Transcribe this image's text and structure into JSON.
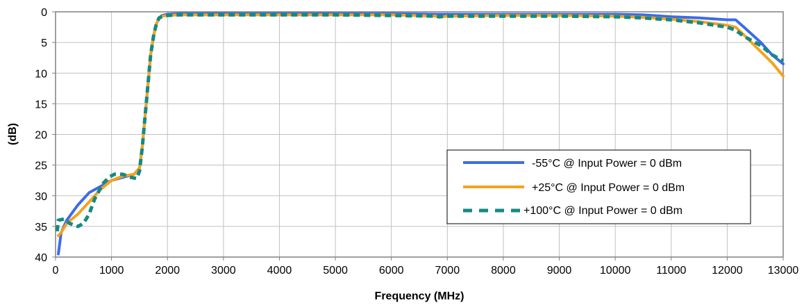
{
  "chart_data": {
    "type": "line",
    "title": "",
    "xlabel": "Frequency (MHz)",
    "ylabel": "(dB)",
    "xlim": [
      0,
      13000
    ],
    "ylim": [
      0,
      40
    ],
    "y_inverted": true,
    "x_ticks": [
      0,
      1000,
      2000,
      3000,
      4000,
      5000,
      6000,
      7000,
      8000,
      9000,
      10000,
      11000,
      12000,
      13000
    ],
    "y_ticks": [
      0,
      5,
      10,
      15,
      20,
      25,
      30,
      35,
      40
    ],
    "grid": true,
    "legend_position": "right",
    "series": [
      {
        "name": "-55°C @  Input Power = 0 dBm",
        "color": "#3D6BE8",
        "dash": "solid",
        "points": [
          [
            50,
            39.5
          ],
          [
            100,
            36
          ],
          [
            200,
            34
          ],
          [
            400,
            31.5
          ],
          [
            600,
            29.5
          ],
          [
            800,
            28.5
          ],
          [
            1000,
            27.5
          ],
          [
            1200,
            27
          ],
          [
            1400,
            26.5
          ],
          [
            1500,
            25.5
          ],
          [
            1550,
            22
          ],
          [
            1600,
            17
          ],
          [
            1650,
            12
          ],
          [
            1700,
            7
          ],
          [
            1750,
            4
          ],
          [
            1800,
            2
          ],
          [
            1850,
            1
          ],
          [
            1900,
            0.6
          ],
          [
            2000,
            0.4
          ],
          [
            2200,
            0.3
          ],
          [
            3000,
            0.3
          ],
          [
            4000,
            0.3
          ],
          [
            5000,
            0.3
          ],
          [
            6000,
            0.3
          ],
          [
            6800,
            0.4
          ],
          [
            7000,
            0.4
          ],
          [
            8000,
            0.4
          ],
          [
            9000,
            0.4
          ],
          [
            10000,
            0.4
          ],
          [
            10500,
            0.5
          ],
          [
            11000,
            0.8
          ],
          [
            11500,
            1.0
          ],
          [
            12000,
            1.3
          ],
          [
            12150,
            1.3
          ],
          [
            12300,
            2.5
          ],
          [
            12600,
            5
          ],
          [
            12800,
            7
          ],
          [
            13000,
            8.5
          ]
        ]
      },
      {
        "name": "+25°C @  Input Power = 0 dBm",
        "color": "#F5A21D",
        "dash": "solid",
        "points": [
          [
            50,
            36.5
          ],
          [
            100,
            36
          ],
          [
            200,
            34.5
          ],
          [
            400,
            33
          ],
          [
            600,
            31
          ],
          [
            800,
            29
          ],
          [
            1000,
            27.5
          ],
          [
            1200,
            26.8
          ],
          [
            1400,
            26.5
          ],
          [
            1500,
            25.5
          ],
          [
            1550,
            22
          ],
          [
            1600,
            17
          ],
          [
            1650,
            12
          ],
          [
            1700,
            7
          ],
          [
            1750,
            4
          ],
          [
            1800,
            2
          ],
          [
            1850,
            1
          ],
          [
            1900,
            0.7
          ],
          [
            2000,
            0.6
          ],
          [
            2200,
            0.5
          ],
          [
            3000,
            0.5
          ],
          [
            4000,
            0.5
          ],
          [
            5000,
            0.5
          ],
          [
            6000,
            0.5
          ],
          [
            6800,
            0.7
          ],
          [
            6850,
            0.9
          ],
          [
            7000,
            0.7
          ],
          [
            8000,
            0.6
          ],
          [
            9000,
            0.6
          ],
          [
            10000,
            0.7
          ],
          [
            10500,
            0.9
          ],
          [
            11000,
            1.2
          ],
          [
            11500,
            1.6
          ],
          [
            12000,
            2.2
          ],
          [
            12150,
            2.5
          ],
          [
            12300,
            3.8
          ],
          [
            12600,
            6.5
          ],
          [
            12800,
            8.3
          ],
          [
            13000,
            10.5
          ]
        ]
      },
      {
        "name": "+100°C @  Input Power = 0 dBm",
        "color": "#138A82",
        "dash": "dash",
        "points": [
          [
            30,
            35.8
          ],
          [
            50,
            34
          ],
          [
            150,
            33.8
          ],
          [
            250,
            34.5
          ],
          [
            400,
            35
          ],
          [
            500,
            34.5
          ],
          [
            600,
            33
          ],
          [
            700,
            30.5
          ],
          [
            850,
            28
          ],
          [
            950,
            27
          ],
          [
            1050,
            26.5
          ],
          [
            1200,
            26.5
          ],
          [
            1350,
            27
          ],
          [
            1450,
            27.2
          ],
          [
            1500,
            26
          ],
          [
            1550,
            22
          ],
          [
            1600,
            17
          ],
          [
            1650,
            12
          ],
          [
            1700,
            7
          ],
          [
            1750,
            4
          ],
          [
            1800,
            2
          ],
          [
            1850,
            1
          ],
          [
            1900,
            0.8
          ],
          [
            2000,
            0.6
          ],
          [
            2200,
            0.5
          ],
          [
            3000,
            0.5
          ],
          [
            4000,
            0.5
          ],
          [
            5000,
            0.5
          ],
          [
            6000,
            0.6
          ],
          [
            6800,
            0.7
          ],
          [
            6850,
            0.8
          ],
          [
            7000,
            0.7
          ],
          [
            8000,
            0.7
          ],
          [
            9000,
            0.7
          ],
          [
            10000,
            0.8
          ],
          [
            10500,
            1.0
          ],
          [
            11000,
            1.3
          ],
          [
            11500,
            1.8
          ],
          [
            12000,
            2.5
          ],
          [
            12150,
            3
          ],
          [
            12300,
            4
          ],
          [
            12600,
            5.5
          ],
          [
            12800,
            7
          ],
          [
            13000,
            8
          ]
        ]
      }
    ]
  }
}
